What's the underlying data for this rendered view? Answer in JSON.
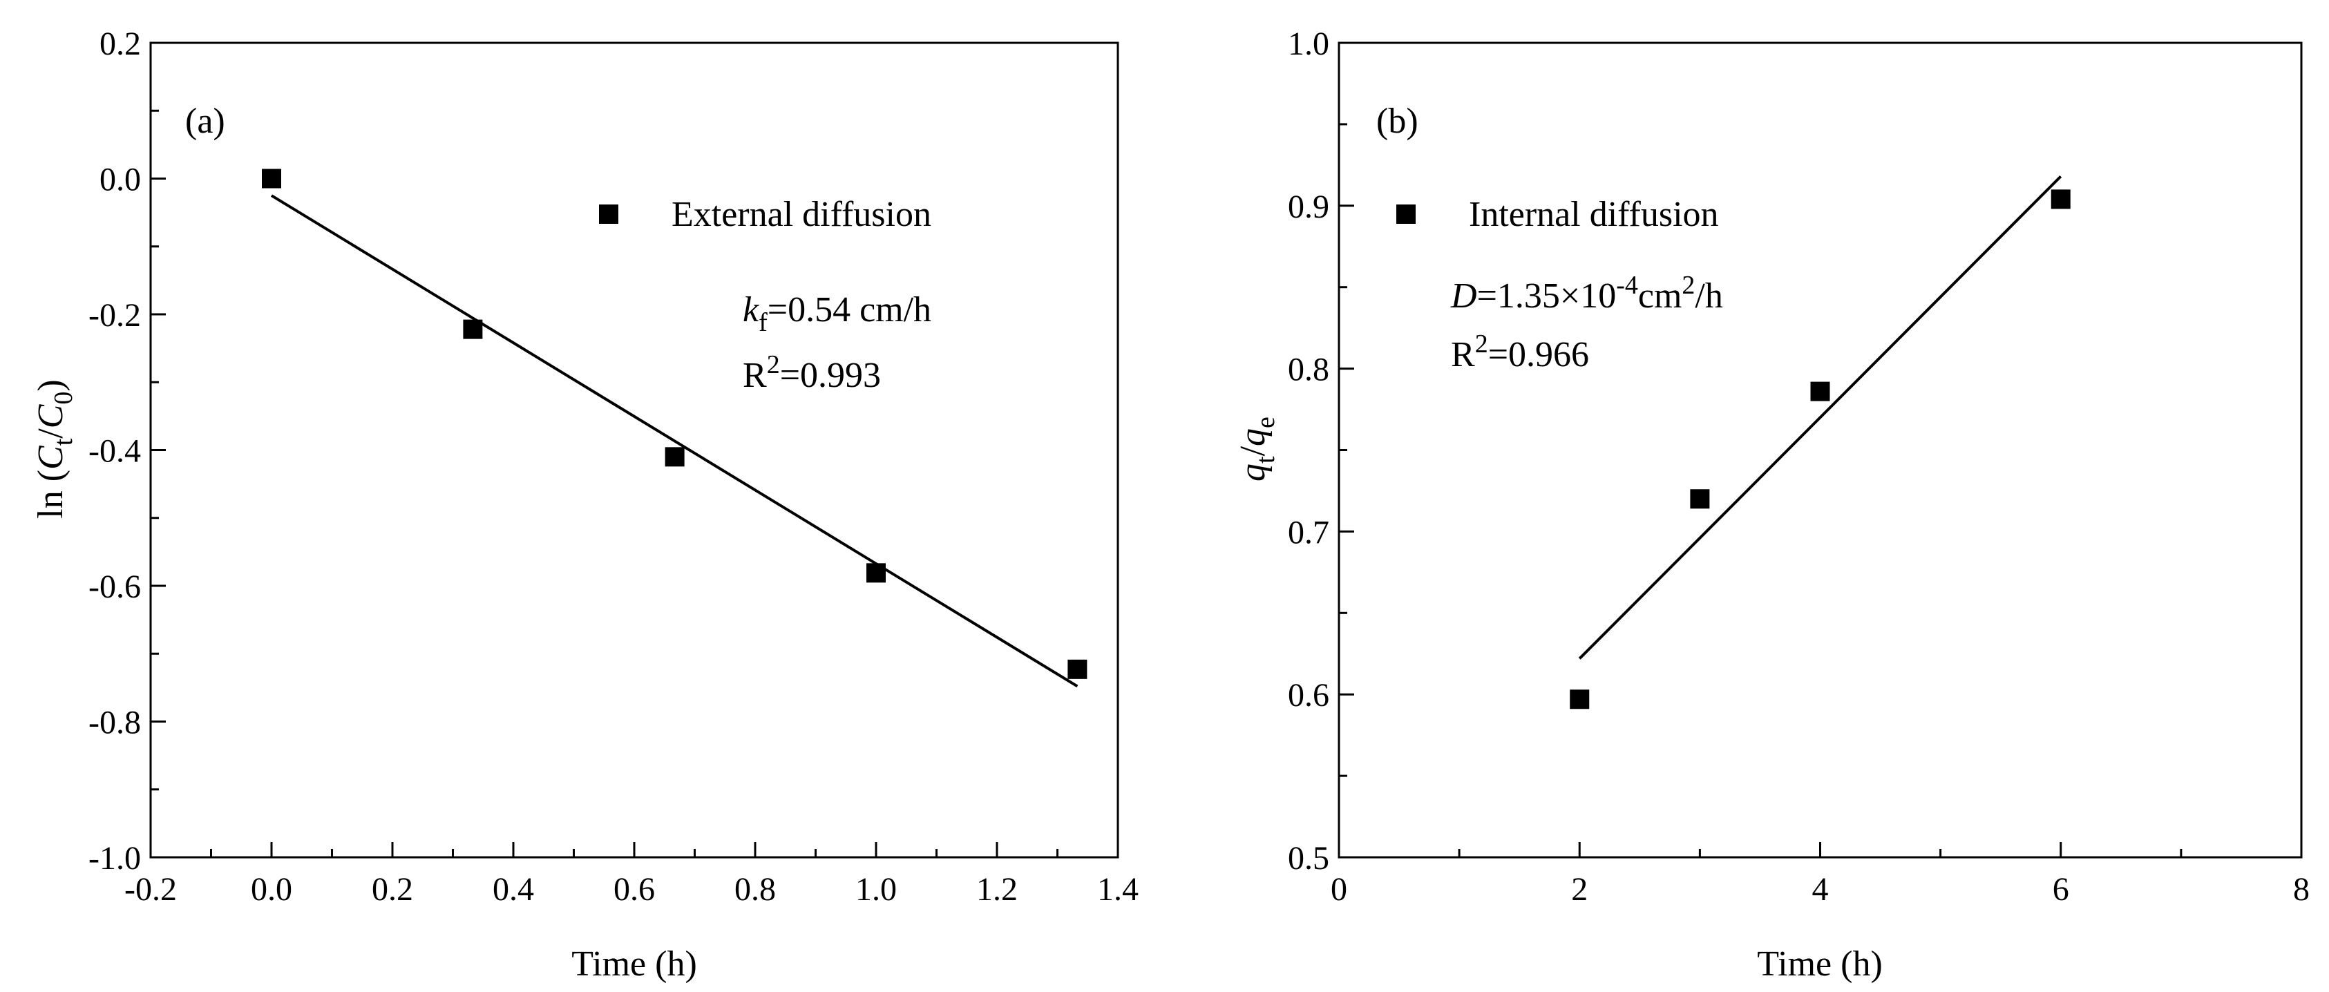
{
  "chart_data": [
    {
      "type": "scatter",
      "panel_label": "(a)",
      "xlabel": "Time (h)",
      "ylabel_parts": {
        "prefix": "ln (",
        "c1": "C",
        "c1_sub": "t",
        "slash": "/",
        "c2": "C",
        "c2_sub": "0",
        "suffix": ")"
      },
      "xlim": [
        -0.2,
        1.4
      ],
      "ylim": [
        -1.0,
        0.2
      ],
      "x_ticks": [
        -0.2,
        0.0,
        0.2,
        0.4,
        0.6,
        0.8,
        1.0,
        1.2,
        1.4
      ],
      "x_tick_labels": [
        "-0.2",
        "0.0",
        "0.2",
        "0.4",
        "0.6",
        "0.8",
        "1.0",
        "1.2",
        "1.4"
      ],
      "y_ticks": [
        -1.0,
        -0.8,
        -0.6,
        -0.4,
        -0.2,
        0.0,
        0.2
      ],
      "y_tick_labels": [
        "-1.0",
        "-0.8",
        "-0.6",
        "-0.4",
        "-0.2",
        "0.0",
        "0.2"
      ],
      "series": [
        {
          "name": "External diffusion",
          "marker": "square",
          "x": [
            0.0,
            0.333,
            0.667,
            1.0,
            1.333
          ],
          "y": [
            0.0,
            -0.222,
            -0.41,
            -0.581,
            -0.723
          ]
        }
      ],
      "fit_line": {
        "x": [
          0.0,
          1.333
        ],
        "y": [
          -0.025,
          -0.748
        ]
      },
      "legend": {
        "label": "External diffusion",
        "location": "top-right"
      },
      "annotations": {
        "line1_sym": "k",
        "line1_sub": "f",
        "line1_rest": "=0.54 cm/h",
        "line2_base": "R",
        "line2_sup": "2",
        "line2_rest": "=0.993"
      }
    },
    {
      "type": "scatter",
      "panel_label": "(b)",
      "xlabel": "Time (h)",
      "ylabel_parts": {
        "q1": "q",
        "q1_sub": "t",
        "slash": "/",
        "q2": "q",
        "q2_sub": "e"
      },
      "xlim": [
        0,
        8
      ],
      "ylim": [
        0.5,
        1.0
      ],
      "x_ticks": [
        0,
        2,
        4,
        6,
        8
      ],
      "x_tick_labels": [
        "0",
        "2",
        "4",
        "6",
        "8"
      ],
      "y_ticks": [
        0.5,
        0.6,
        0.7,
        0.8,
        0.9,
        1.0
      ],
      "y_tick_labels": [
        "0.5",
        "0.6",
        "0.7",
        "0.8",
        "0.9",
        "1.0"
      ],
      "series": [
        {
          "name": "Internal diffusion",
          "marker": "square",
          "x": [
            2,
            3,
            4,
            6
          ],
          "y": [
            0.597,
            0.72,
            0.786,
            0.904
          ]
        }
      ],
      "fit_line": {
        "x": [
          2,
          6
        ],
        "y": [
          0.622,
          0.918
        ]
      },
      "legend": {
        "label": "Internal diffusion",
        "location": "top-left"
      },
      "annotations": {
        "line1_sym": "D",
        "line1_mid": "=1.35×10",
        "line1_sup": "-4",
        "line1_unit": "cm",
        "line1_unit_sup": "2",
        "line1_tail": "/h",
        "line2_base": "R",
        "line2_sup": "2",
        "line2_rest": "=0.966"
      }
    }
  ]
}
